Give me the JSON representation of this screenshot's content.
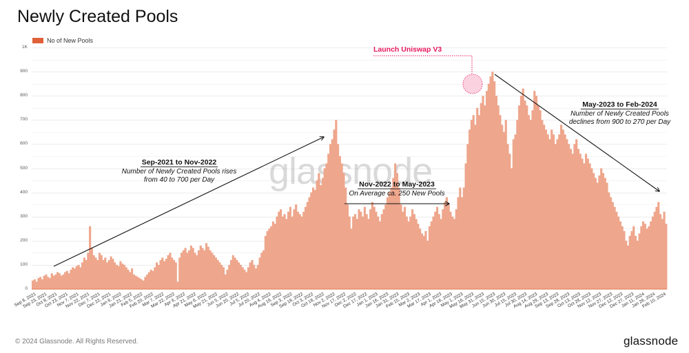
{
  "header": {
    "title": "Newly Created Pools"
  },
  "legend": {
    "label": "No of New Pools",
    "color": "#e0603a"
  },
  "watermark": "glassnode",
  "footer": {
    "copyright": "© 2024 Glassnode. All Rights Reserved.",
    "logo": "glassnode"
  },
  "annotations": {
    "launch": "Launch Uniswap V3",
    "rise": {
      "heading": "Sep-2021 to Nov-2022",
      "line1": "Number of Newly Created Pools rises",
      "line2": "from 40 to 700 per Day"
    },
    "flat": {
      "heading": "Nov-2022 to May-2023",
      "line1": "On Average ca. 250 New Pools"
    },
    "decline": {
      "heading": "May-2023 to Feb-2024",
      "line1": "Number of Newly Created Pools",
      "line2": "declines from 900 to 270 per Day"
    }
  },
  "colors": {
    "bar": "#eea68c",
    "bar_edge": "#e8906f",
    "launch": "#e8195f",
    "launch_circle": "#f9c4d6",
    "grid": "#ececec"
  },
  "chart_data": {
    "type": "bar",
    "title": "Newly Created Pools",
    "xlabel": "",
    "ylabel": "No of New Pools",
    "ylim": [
      0,
      1000
    ],
    "grid": true,
    "legend_position": "top-left",
    "y_ticks": [
      "0",
      "100",
      "200",
      "300",
      "400",
      "500",
      "600",
      "700",
      "800",
      "900",
      "1K"
    ],
    "x_ticks": [
      "Sep 8, 2021",
      "Sep 23, 2021",
      "Oct 8, 2021",
      "Oct 23, 2021",
      "Nov 7, 2021",
      "Nov 22, 2021",
      "Dec 7, 2021",
      "Dec 22, 2021",
      "Jan 6, 2022",
      "Jan 21, 2022",
      "Feb 5, 2022",
      "Feb 20, 2022",
      "Mar 7, 2022",
      "Mar 22, 2022",
      "Apr 6, 2022",
      "Apr 21, 2022",
      "May 6, 2022",
      "May 21, 2022",
      "Jun 5, 2022",
      "Jun 20, 2022",
      "Jul 5, 2022",
      "Jul 20, 2022",
      "Aug 4, 2022",
      "Aug 19, 2022",
      "Sep 3, 2022",
      "Sep 18, 2022",
      "Oct 3, 2022",
      "Oct 18, 2022",
      "Nov 2, 2022",
      "Nov 17, 2022",
      "Dec 2, 2022",
      "Dec 17, 2022",
      "Jan 1, 2023",
      "Jan 16, 2023",
      "Jan 31, 2023",
      "Feb 15, 2023",
      "Mar 2, 2023",
      "Mar 17, 2023",
      "Apr 1, 2023",
      "Apr 16, 2023",
      "May 1, 2023",
      "May 16, 2023",
      "May 31, 2023",
      "Jun 15, 2023",
      "Jun 30, 2023",
      "Jul 15, 2023",
      "Jul 30, 2023",
      "Aug 14, 2023",
      "Aug 29, 2023",
      "Sep 13, 2023",
      "Sep 28, 2023",
      "Oct 13, 2023",
      "Oct 28, 2023",
      "Nov 12, 2023",
      "Nov 27, 2023",
      "Dec 12, 2023",
      "Dec 27, 2023",
      "Jan 11, 2024",
      "Jan 26, 2024",
      "Feb 10, 2024"
    ],
    "x_start": "Sep 8, 2021",
    "x_end": "Feb 2024",
    "sampling": "approx every 3 days",
    "series": [
      {
        "name": "No of New Pools",
        "values": [
          35,
          40,
          30,
          45,
          50,
          40,
          55,
          60,
          50,
          45,
          65,
          55,
          60,
          70,
          65,
          55,
          60,
          70,
          75,
          65,
          80,
          90,
          85,
          95,
          100,
          90,
          110,
          130,
          120,
          150,
          260,
          170,
          140,
          130,
          120,
          150,
          140,
          120,
          130,
          110,
          120,
          135,
          125,
          110,
          100,
          95,
          115,
          105,
          100,
          90,
          80,
          70,
          85,
          60,
          55,
          50,
          45,
          40,
          35,
          50,
          60,
          70,
          80,
          75,
          90,
          110,
          100,
          120,
          130,
          115,
          125,
          140,
          150,
          130,
          120,
          110,
          30,
          130,
          150,
          160,
          170,
          150,
          160,
          180,
          170,
          150,
          140,
          160,
          180,
          170,
          160,
          190,
          175,
          160,
          150,
          140,
          130,
          120,
          110,
          100,
          90,
          60,
          80,
          100,
          120,
          140,
          130,
          120,
          110,
          100,
          90,
          80,
          70,
          90,
          110,
          120,
          100,
          85,
          100,
          130,
          150,
          160,
          220,
          240,
          250,
          260,
          280,
          270,
          300,
          320,
          330,
          300,
          310,
          290,
          320,
          340,
          300,
          330,
          350,
          320,
          310,
          300,
          320,
          340,
          360,
          380,
          400,
          420,
          410,
          450,
          480,
          430,
          460,
          500,
          520,
          560,
          600,
          620,
          660,
          700,
          600,
          550,
          520,
          480,
          420,
          350,
          300,
          250,
          300,
          310,
          290,
          330,
          320,
          300,
          340,
          310,
          290,
          330,
          360,
          340,
          320,
          300,
          280,
          310,
          330,
          350,
          380,
          400,
          420,
          460,
          520,
          480,
          420,
          350,
          320,
          340,
          300,
          280,
          300,
          330,
          310,
          290,
          270,
          250,
          230,
          220,
          240,
          200,
          260,
          280,
          300,
          320,
          340,
          310,
          290,
          330,
          360,
          380,
          350,
          320,
          300,
          290,
          330,
          380,
          420,
          380,
          420,
          520,
          600,
          660,
          700,
          720,
          680,
          750,
          720,
          770,
          800,
          760,
          820,
          850,
          880,
          900,
          860,
          800,
          760,
          720,
          680,
          650,
          700,
          600,
          560,
          500,
          620,
          640,
          700,
          760,
          800,
          830,
          780,
          760,
          720,
          700,
          740,
          820,
          800,
          760,
          740,
          700,
          680,
          660,
          640,
          620,
          660,
          640,
          600,
          620,
          640,
          680,
          660,
          640,
          620,
          600,
          580,
          560,
          600,
          620,
          580,
          560,
          540,
          520,
          560,
          540,
          520,
          500,
          480,
          460,
          440,
          470,
          500,
          480,
          460,
          440,
          400,
          380,
          360,
          340,
          320,
          300,
          280,
          260,
          240,
          200,
          180,
          220,
          240,
          260,
          220,
          200,
          230,
          260,
          280,
          270,
          250,
          260,
          280,
          300,
          320,
          340,
          360,
          310,
          290,
          320,
          270
        ]
      }
    ]
  }
}
